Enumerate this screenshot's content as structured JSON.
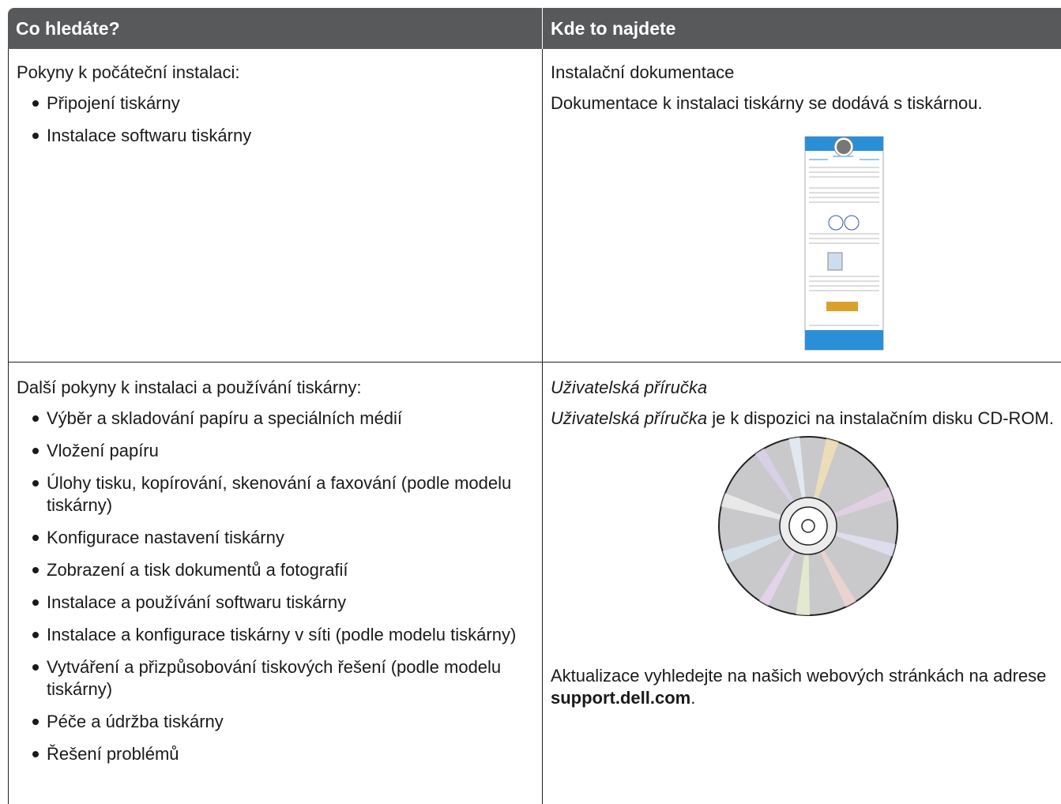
{
  "table": {
    "header": [
      "Co hledáte?",
      "Kde to najdete"
    ],
    "rows": [
      {
        "what": {
          "intro": "Pokyny k počáteční instalaci:",
          "items": [
            "Připojení tiskárny",
            "Instalace softwaru tiskárny"
          ]
        },
        "where": {
          "title": "Instalační dokumentace",
          "text": "Dokumentace k instalaci tiskárny se dodává s tiskárnou."
        }
      },
      {
        "what": {
          "intro": "Další pokyny k instalaci a používání tiskárny:",
          "items": [
            "Výběr a skladování papíru a speciálních médií",
            "Vložení papíru",
            "Úlohy tisku, kopírování, skenování a faxování (podle modelu tiskárny)",
            "Konfigurace nastavení tiskárny",
            "Zobrazení a tisk dokumentů a fotografií",
            "Instalace a používání softwaru tiskárny",
            "Instalace a konfigurace tiskárny v síti (podle modelu tiskárny)",
            "Vytváření a přizpůsobování tiskových řešení (podle modelu tiskárny)",
            "Péče a údržba tiskárny",
            "Řešení problémů"
          ]
        },
        "where": {
          "title": "Uživatelská příručka",
          "text_italic": "Uživatelská příručka",
          "text": " je k dispozici na instalačním disku CD-ROM.",
          "update_text": "Aktualizace vyhledejte na našich webových stránkách na adrese ",
          "update_link": "support.dell.com",
          "update_end": "."
        }
      }
    ]
  }
}
